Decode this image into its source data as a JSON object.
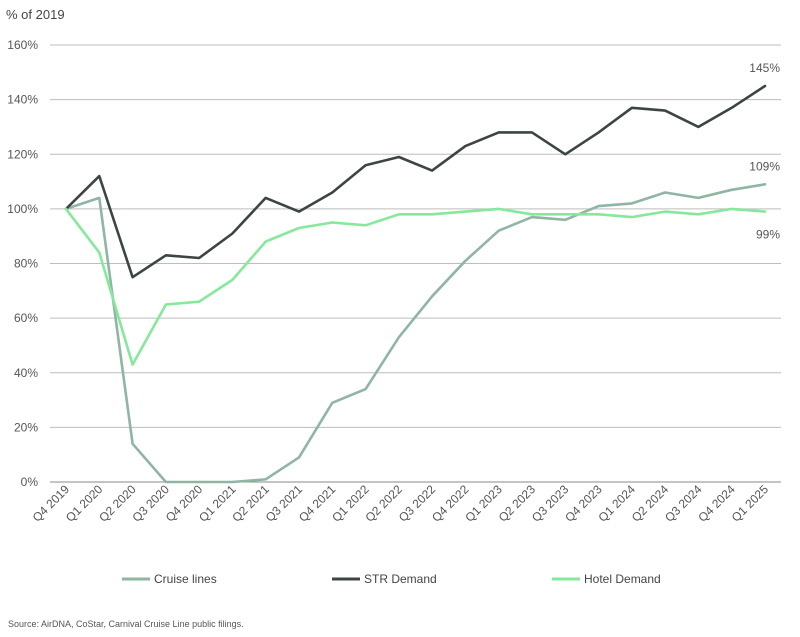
{
  "chart_data": {
    "type": "line",
    "ylabel": "% of 2019",
    "ylim": [
      0,
      160
    ],
    "yticks": [
      0,
      20,
      40,
      60,
      80,
      100,
      120,
      140,
      160
    ],
    "ytick_labels": [
      "0%",
      "20%",
      "40%",
      "60%",
      "80%",
      "100%",
      "120%",
      "140%",
      "160%"
    ],
    "grid": true,
    "legend_position": "bottom",
    "categories": [
      "Q4 2019",
      "Q1 2020",
      "Q2 2020",
      "Q3 2020",
      "Q4 2020",
      "Q1 2021",
      "Q2 2021",
      "Q3 2021",
      "Q4 2021",
      "Q1 2022",
      "Q2 2022",
      "Q3 2022",
      "Q4 2022",
      "Q1 2023",
      "Q2 2023",
      "Q3 2023",
      "Q4 2023",
      "Q1 2024",
      "Q2 2024",
      "Q3 2024",
      "Q4 2024",
      "Q1 2025"
    ],
    "series": [
      {
        "name": "Cruise lines",
        "color": "#8fb5a3",
        "values": [
          100,
          104,
          14,
          0,
          0,
          0,
          1,
          9,
          29,
          34,
          53,
          68,
          81,
          92,
          97,
          96,
          101,
          102,
          106,
          104,
          107,
          109
        ]
      },
      {
        "name": "STR Demand",
        "color": "#3c4544",
        "values": [
          100,
          112,
          75,
          83,
          82,
          91,
          104,
          99,
          106,
          116,
          119,
          114,
          123,
          128,
          128,
          120,
          128,
          137,
          136,
          130,
          137,
          145
        ]
      },
      {
        "name": "Hotel Demand",
        "color": "#86e89a",
        "values": [
          100,
          84,
          43,
          65,
          66,
          74,
          88,
          93,
          95,
          94,
          98,
          98,
          99,
          100,
          98,
          98,
          98,
          97,
          99,
          98,
          100,
          99
        ]
      }
    ],
    "annotations": [
      {
        "text": "145%",
        "series": "STR Demand",
        "index": 21
      },
      {
        "text": "109%",
        "series": "Cruise lines",
        "index": 21
      },
      {
        "text": "99%",
        "series": "Hotel Demand",
        "index": 21
      }
    ]
  },
  "source": "Source: AirDNA, CoStar, Carnival Cruise Line public filings."
}
